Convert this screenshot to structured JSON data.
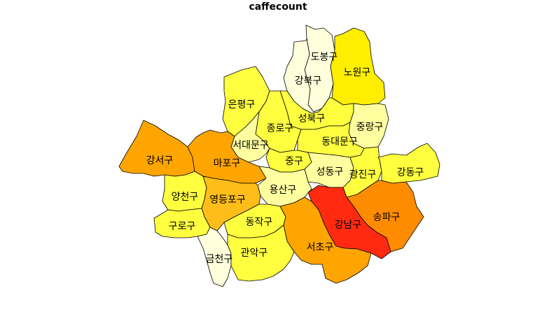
{
  "title": "caffecount",
  "colors": {
    "red": "#FF2A0F",
    "orange_dark": "#FF8C00",
    "orange": "#FFA500",
    "orange_light": "#FFBD1A",
    "gold": "#FFD21C",
    "yellow": "#FFEE00",
    "yellow_mid": "#FFFF40",
    "yellow_light": "#FFFFA0",
    "cream": "#FFFFDC"
  },
  "districts": [
    {
      "id": "dobong",
      "name": "도봉구",
      "fill": "cream"
    },
    {
      "id": "nowon",
      "name": "노원구",
      "fill": "yellow"
    },
    {
      "id": "gangbuk",
      "name": "강북구",
      "fill": "cream"
    },
    {
      "id": "eunpyeong",
      "name": "은평구",
      "fill": "yellow_mid"
    },
    {
      "id": "seongbuk",
      "name": "성북구",
      "fill": "yellow_mid"
    },
    {
      "id": "jongno",
      "name": "종로구",
      "fill": "yellow_mid"
    },
    {
      "id": "jungnang",
      "name": "중랑구",
      "fill": "yellow_light"
    },
    {
      "id": "seodaemun",
      "name": "서대문구",
      "fill": "yellow_light"
    },
    {
      "id": "dongdaemun",
      "name": "동대문구",
      "fill": "yellow_mid"
    },
    {
      "id": "gangseo",
      "name": "강서구",
      "fill": "orange"
    },
    {
      "id": "mapo",
      "name": "마포구",
      "fill": "orange"
    },
    {
      "id": "junggu",
      "name": "중구",
      "fill": "yellow_mid"
    },
    {
      "id": "seongdong",
      "name": "성동구",
      "fill": "yellow_light"
    },
    {
      "id": "gwangjin",
      "name": "광진구",
      "fill": "yellow_mid"
    },
    {
      "id": "gangdong",
      "name": "강동구",
      "fill": "yellow_mid"
    },
    {
      "id": "yongsan",
      "name": "용산구",
      "fill": "yellow_light"
    },
    {
      "id": "yangcheon",
      "name": "양천구",
      "fill": "yellow_mid"
    },
    {
      "id": "yeongdeungpo",
      "name": "영등포구",
      "fill": "orange_light"
    },
    {
      "id": "guro",
      "name": "구로구",
      "fill": "yellow_mid"
    },
    {
      "id": "dongjak",
      "name": "동작구",
      "fill": "yellow_mid"
    },
    {
      "id": "gangnam",
      "name": "강남구",
      "fill": "red"
    },
    {
      "id": "songpa",
      "name": "송파구",
      "fill": "orange_dark"
    },
    {
      "id": "seocho",
      "name": "서초구",
      "fill": "orange"
    },
    {
      "id": "geumcheon",
      "name": "금천구",
      "fill": "cream"
    },
    {
      "id": "gwanak",
      "name": "관악구",
      "fill": "yellow_mid"
    }
  ]
}
